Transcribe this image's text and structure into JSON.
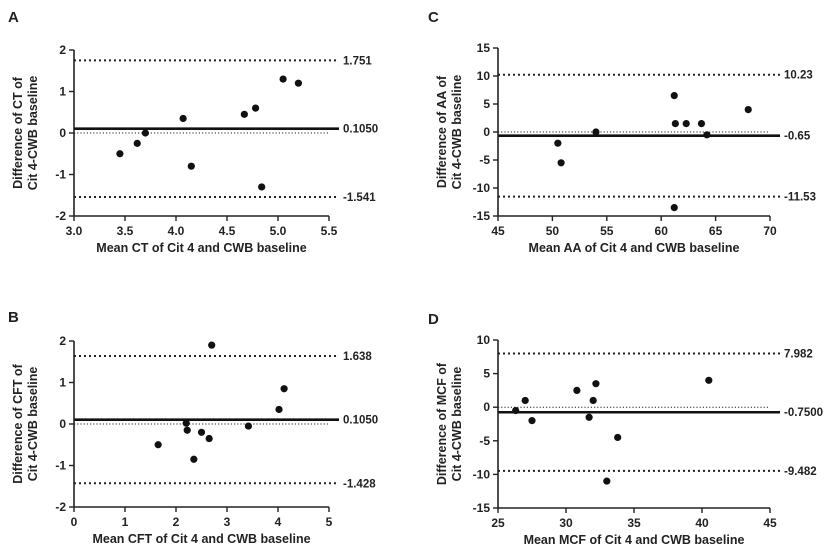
{
  "chart_data": [
    {
      "type": "scatter",
      "panel_label": "A",
      "xlabel": "Mean CT of Cit 4 and CWB baseline",
      "ylabel_lines": [
        "Difference of CT of",
        "Cit 4-CWB baseline"
      ],
      "xlim": [
        3.0,
        5.5
      ],
      "ylim": [
        -2,
        2
      ],
      "xticks": [
        3.0,
        3.5,
        4.0,
        4.5,
        5.0,
        5.5
      ],
      "xtick_labels": [
        "3.0",
        "3.5",
        "4.0",
        "4.5",
        "5.0",
        "5.5"
      ],
      "yticks": [
        -2,
        -1,
        0,
        1,
        2
      ],
      "ytick_labels": [
        "-2",
        "-1",
        "0",
        "1",
        "2"
      ],
      "points": [
        [
          3.45,
          -0.5
        ],
        [
          3.62,
          -0.25
        ],
        [
          3.7,
          0.0
        ],
        [
          4.07,
          0.35
        ],
        [
          4.15,
          -0.8
        ],
        [
          4.67,
          0.45
        ],
        [
          4.78,
          0.6
        ],
        [
          4.84,
          -1.3
        ],
        [
          5.05,
          1.3
        ],
        [
          5.2,
          1.2
        ]
      ],
      "mean_line": {
        "value": 0.105,
        "label": "0.1050"
      },
      "upper_loa": {
        "value": 1.751,
        "label": "1.751"
      },
      "lower_loa": {
        "value": -1.541,
        "label": "-1.541"
      }
    },
    {
      "type": "scatter",
      "panel_label": "B",
      "xlabel": "Mean CFT of Cit 4 and CWB baseline",
      "ylabel_lines": [
        "Difference of CFT of",
        "Cit 4-CWB baseline"
      ],
      "xlim": [
        0,
        5
      ],
      "ylim": [
        -2,
        2
      ],
      "xticks": [
        0,
        1,
        2,
        3,
        4,
        5
      ],
      "xtick_labels": [
        "0",
        "1",
        "2",
        "3",
        "4",
        "5"
      ],
      "yticks": [
        -2,
        -1,
        0,
        1,
        2
      ],
      "ytick_labels": [
        "-2",
        "-1",
        "0",
        "1",
        "2"
      ],
      "points": [
        [
          1.65,
          -0.5
        ],
        [
          2.2,
          0.02
        ],
        [
          2.22,
          -0.15
        ],
        [
          2.35,
          -0.85
        ],
        [
          2.5,
          -0.2
        ],
        [
          2.65,
          -0.35
        ],
        [
          2.7,
          1.9
        ],
        [
          3.42,
          -0.05
        ],
        [
          4.02,
          0.35
        ],
        [
          4.12,
          0.85
        ]
      ],
      "mean_line": {
        "value": 0.105,
        "label": "0.1050"
      },
      "upper_loa": {
        "value": 1.638,
        "label": "1.638"
      },
      "lower_loa": {
        "value": -1.428,
        "label": "-1.428"
      }
    },
    {
      "type": "scatter",
      "panel_label": "C",
      "xlabel": "Mean AA of Cit 4 and CWB baseline",
      "ylabel_lines": [
        "Difference of AA of",
        "Cit 4-CWB baseline"
      ],
      "xlim": [
        45,
        70
      ],
      "ylim": [
        -15,
        15
      ],
      "xticks": [
        45,
        50,
        55,
        60,
        65,
        70
      ],
      "xtick_labels": [
        "45",
        "50",
        "55",
        "60",
        "65",
        "70"
      ],
      "yticks": [
        -15,
        -10,
        -5,
        0,
        5,
        10,
        15
      ],
      "ytick_labels": [
        "-15",
        "-10",
        "-5",
        "0",
        "5",
        "10",
        "15"
      ],
      "points": [
        [
          50.5,
          -2.0
        ],
        [
          50.8,
          -5.5
        ],
        [
          54.0,
          0.0
        ],
        [
          61.2,
          6.5
        ],
        [
          61.3,
          1.5
        ],
        [
          62.3,
          1.5
        ],
        [
          63.7,
          1.5
        ],
        [
          64.2,
          -0.5
        ],
        [
          61.2,
          -13.5
        ],
        [
          68.0,
          4.0
        ]
      ],
      "mean_line": {
        "value": -0.65,
        "label": "-0.65"
      },
      "upper_loa": {
        "value": 10.23,
        "label": "10.23"
      },
      "lower_loa": {
        "value": -11.53,
        "label": "-11.53"
      }
    },
    {
      "type": "scatter",
      "panel_label": "D",
      "xlabel": "Mean MCF of Cit 4 and CWB baseline",
      "ylabel_lines": [
        "Difference of MCF of",
        "Cit 4-CWB baseline"
      ],
      "xlim": [
        25,
        45
      ],
      "ylim": [
        -15,
        10
      ],
      "xticks": [
        25,
        30,
        35,
        40,
        45
      ],
      "xtick_labels": [
        "25",
        "30",
        "35",
        "40",
        "45"
      ],
      "yticks": [
        -15,
        -10,
        -5,
        0,
        5,
        10
      ],
      "ytick_labels": [
        "-15",
        "-10",
        "-5",
        "0",
        "5",
        "10"
      ],
      "points": [
        [
          26.3,
          -0.5
        ],
        [
          27.0,
          1.0
        ],
        [
          27.5,
          -2.0
        ],
        [
          30.8,
          2.5
        ],
        [
          31.7,
          -1.5
        ],
        [
          32.0,
          1.0
        ],
        [
          32.2,
          3.5
        ],
        [
          33.0,
          -11.0
        ],
        [
          33.8,
          -4.5
        ],
        [
          40.5,
          4.0
        ]
      ],
      "mean_line": {
        "value": -0.75,
        "label": "-0.7500"
      },
      "upper_loa": {
        "value": 7.982,
        "label": "7.982"
      },
      "lower_loa": {
        "value": -9.482,
        "label": "-9.482"
      }
    }
  ]
}
